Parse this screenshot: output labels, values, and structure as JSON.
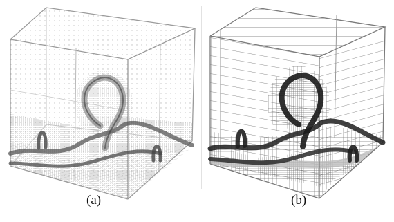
{
  "figure": {
    "panels": [
      {
        "caption": "(a)",
        "style": "point-cloud",
        "colors": {
          "frame": "#9a9a9a",
          "points": "#8a8a8a",
          "curve": "#333333"
        }
      },
      {
        "caption": "(b)",
        "style": "adaptive-mesh",
        "colors": {
          "frame": "#7a7a7a",
          "mesh": "#8c8c8c",
          "curve": "#1e1e1e"
        }
      }
    ]
  }
}
